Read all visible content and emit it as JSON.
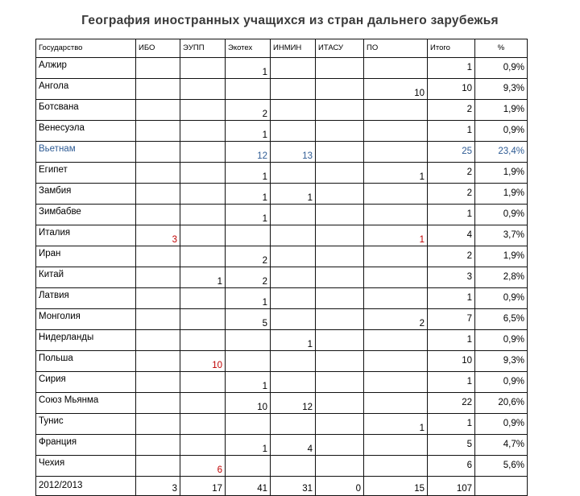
{
  "title": "География иностранных учащихся из стран дальнего зарубежья",
  "columns": [
    "Государство",
    "ИБО",
    "ЭУПП",
    "Экотех",
    "ИНМИН",
    "ИТАСУ",
    "ПО",
    "Итого",
    "%"
  ],
  "rows": [
    {
      "country": "Алжир",
      "cells": [
        "",
        "",
        "1",
        "",
        "",
        "",
        "1",
        "0,9%"
      ]
    },
    {
      "country": "Ангола",
      "cells": [
        "",
        "",
        "",
        "",
        "",
        "10",
        "10",
        "9,3%"
      ]
    },
    {
      "country": "Ботсвана",
      "cells": [
        "",
        "",
        "2",
        "",
        "",
        "",
        "2",
        "1,9%"
      ]
    },
    {
      "country": "Венесуэла",
      "cells": [
        "",
        "",
        "1",
        "",
        "",
        "",
        "1",
        "0,9%"
      ]
    },
    {
      "country": "Вьетнам",
      "cells": [
        "",
        "",
        "12",
        "13",
        "",
        "",
        "25",
        "23,4%"
      ]
    },
    {
      "country": "Египет",
      "cells": [
        "",
        "",
        "1",
        "",
        "",
        "1",
        "2",
        "1,9%"
      ]
    },
    {
      "country": "Замбия",
      "cells": [
        "",
        "",
        "1",
        "1",
        "",
        "",
        "2",
        "1,9%"
      ]
    },
    {
      "country": "Зимбабве",
      "cells": [
        "",
        "",
        "1",
        "",
        "",
        "",
        "1",
        "0,9%"
      ]
    },
    {
      "country": "Италия",
      "cells": [
        "3",
        "",
        "",
        "",
        "",
        "1",
        "4",
        "3,7%"
      ]
    },
    {
      "country": "Иран",
      "cells": [
        "",
        "",
        "2",
        "",
        "",
        "",
        "2",
        "1,9%"
      ]
    },
    {
      "country": "Китай",
      "cells": [
        "",
        "1",
        "2",
        "",
        "",
        "",
        "3",
        "2,8%"
      ]
    },
    {
      "country": "Латвия",
      "cells": [
        "",
        "",
        "1",
        "",
        "",
        "",
        "1",
        "0,9%"
      ]
    },
    {
      "country": "Монголия",
      "cells": [
        "",
        "",
        "5",
        "",
        "",
        "2",
        "7",
        "6,5%"
      ]
    },
    {
      "country": "Нидерланды",
      "cells": [
        "",
        "",
        "",
        "1",
        "",
        "",
        "1",
        "0,9%"
      ]
    },
    {
      "country": "Польша",
      "cells": [
        "",
        "10",
        "",
        "",
        "",
        "",
        "10",
        "9,3%"
      ]
    },
    {
      "country": "Сирия",
      "cells": [
        "",
        "",
        "1",
        "",
        "",
        "",
        "1",
        "0,9%"
      ]
    },
    {
      "country": "Союз Мьянма",
      "cells": [
        "",
        "",
        "10",
        "12",
        "",
        "",
        "22",
        "20,6%"
      ]
    },
    {
      "country": "Тунис",
      "cells": [
        "",
        "",
        "",
        "",
        "",
        "1",
        "1",
        "0,9%"
      ]
    },
    {
      "country": "Франция",
      "cells": [
        "",
        "",
        "1",
        "4",
        "",
        "",
        "5",
        "4,7%"
      ]
    },
    {
      "country": "Чехия",
      "cells": [
        "",
        "6",
        "",
        "",
        "",
        "",
        "6",
        "5,6%"
      ]
    }
  ],
  "total": {
    "label": "2012/2013",
    "cells": [
      "3",
      "17",
      "41",
      "31",
      "0",
      "15",
      "107",
      ""
    ]
  },
  "colors": {
    "red": "#c00000",
    "blue": "#2e5b94",
    "title": "#3a3a3a"
  }
}
